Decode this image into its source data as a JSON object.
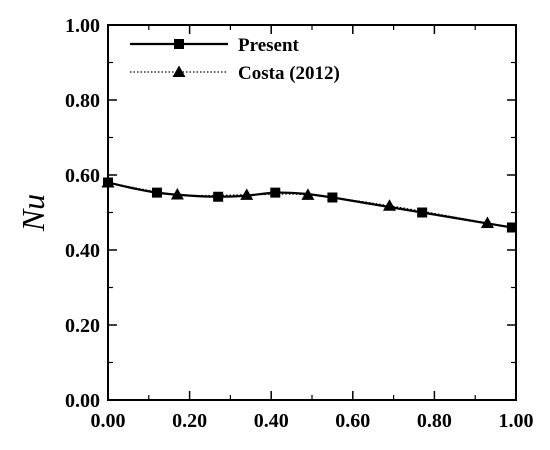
{
  "chart_data": {
    "type": "line",
    "title": "",
    "xlabel": "",
    "ylabel": "Nu",
    "xlim": [
      0,
      1
    ],
    "ylim": [
      0,
      1
    ],
    "xticks": [
      "0.00",
      "0.20",
      "0.40",
      "0.60",
      "0.80",
      "1.00"
    ],
    "yticks": [
      "0.00",
      "0.20",
      "0.40",
      "0.60",
      "0.80",
      "1.00"
    ],
    "grid": false,
    "legend_position": "top-left",
    "series": [
      {
        "name": "Present",
        "marker": "square",
        "line_style": "solid",
        "color": "#000000",
        "x": [
          0.0,
          0.12,
          0.27,
          0.41,
          0.55,
          0.77,
          0.99
        ],
        "y": [
          0.58,
          0.553,
          0.542,
          0.553,
          0.54,
          0.5,
          0.46
        ],
        "curve_x": [
          0.0,
          0.06,
          0.12,
          0.2,
          0.27,
          0.34,
          0.41,
          0.48,
          0.55,
          0.66,
          0.77,
          0.88,
          0.99
        ],
        "curve_y": [
          0.58,
          0.565,
          0.553,
          0.545,
          0.542,
          0.545,
          0.553,
          0.55,
          0.54,
          0.52,
          0.5,
          0.48,
          0.46
        ]
      },
      {
        "name": "Costa (2012)",
        "marker": "triangle",
        "line_style": "dotted",
        "color": "#000000",
        "x": [
          0.0,
          0.17,
          0.34,
          0.49,
          0.69,
          0.93
        ],
        "y": [
          0.58,
          0.548,
          0.547,
          0.547,
          0.518,
          0.472
        ]
      }
    ]
  }
}
